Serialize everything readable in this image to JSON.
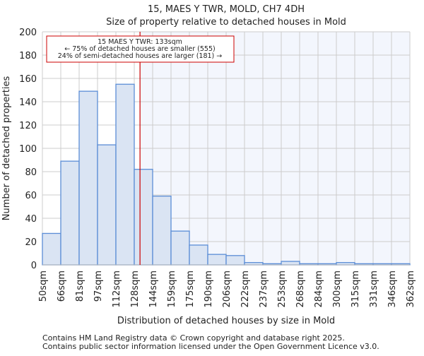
{
  "chart_data": {
    "type": "bar",
    "title": "15, MAES Y TWR, MOLD, CH7 4DH",
    "subtitle": "Size of property relative to detached houses in Mold",
    "xlabel": "Distribution of detached houses by size in Mold",
    "ylabel": "Number of detached properties",
    "ylim": [
      0,
      200
    ],
    "yticks": [
      0,
      20,
      40,
      60,
      80,
      100,
      120,
      140,
      160,
      180,
      200
    ],
    "bin_edges": [
      50,
      66,
      81,
      97,
      112,
      128,
      144,
      159,
      175,
      190,
      206,
      222,
      237,
      253,
      268,
      284,
      300,
      315,
      331,
      346,
      362
    ],
    "xtick_labels": [
      "50sqm",
      "66sqm",
      "81sqm",
      "97sqm",
      "112sqm",
      "128sqm",
      "144sqm",
      "159sqm",
      "175sqm",
      "190sqm",
      "206sqm",
      "222sqm",
      "237sqm",
      "253sqm",
      "268sqm",
      "284sqm",
      "300sqm",
      "315sqm",
      "331sqm",
      "346sqm",
      "362sqm"
    ],
    "values": [
      27,
      89,
      149,
      103,
      155,
      82,
      59,
      29,
      17,
      9,
      8,
      2,
      1,
      3,
      1,
      1,
      2,
      1,
      1,
      1
    ],
    "marker_value": 133,
    "annotation": [
      "15 MAES Y TWR: 133sqm",
      "← 75% of detached houses are smaller (555)",
      "24% of semi-detached houses are larger (181) →"
    ],
    "grid": true,
    "colors": {
      "bar_fill": "#dae4f3",
      "bar_edge": "#5b8dd6",
      "marker": "#cc0000",
      "highlight_bg": "#f3f6fd",
      "grid": "#cccccc"
    }
  },
  "footer": [
    "Contains HM Land Registry data © Crown copyright and database right 2025.",
    "Contains public sector information licensed under the Open Government Licence v3.0."
  ]
}
